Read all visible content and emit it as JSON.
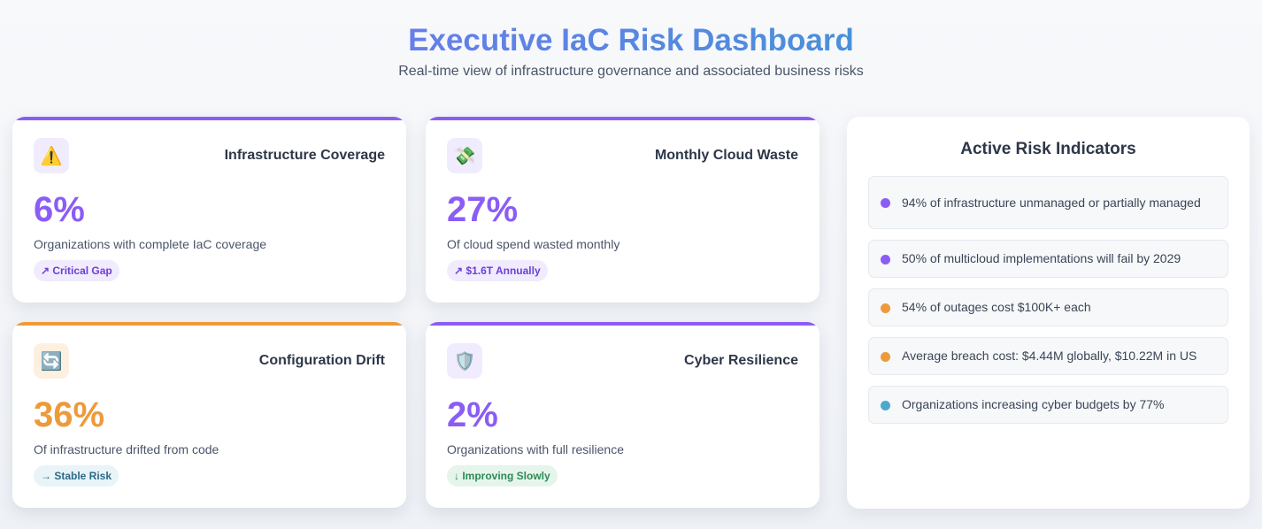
{
  "header": {
    "title": "Executive IaC Risk Dashboard",
    "subtitle": "Real-time view of infrastructure governance and associated business risks"
  },
  "cards": [
    {
      "title": "Infrastructure Coverage",
      "icon": "warning-icon",
      "icon_glyph": "⚠️",
      "value": "6%",
      "description": "Organizations with complete IaC coverage",
      "badge": "↗ Critical Gap",
      "accent": "#8b5cf6",
      "badge_bg": "#f1ebfe",
      "badge_color": "#6d3fd6",
      "icon_bg": "#f1ebfe"
    },
    {
      "title": "Monthly Cloud Waste",
      "icon": "money-icon",
      "icon_glyph": "💸",
      "value": "27%",
      "description": "Of cloud spend wasted monthly",
      "badge": "↗ $1.6T Annually",
      "accent": "#8b5cf6",
      "badge_bg": "#f1ebfe",
      "badge_color": "#6d3fd6",
      "icon_bg": "#f1ebfe"
    },
    {
      "title": "Configuration Drift",
      "icon": "refresh-icon",
      "icon_glyph": "🔄",
      "value": "36%",
      "description": "Of infrastructure drifted from code",
      "badge": "→ Stable Risk",
      "accent": "#ed9a3a",
      "badge_bg": "#e8f4f8",
      "badge_color": "#2c6a85",
      "icon_bg": "#fdf0e1"
    },
    {
      "title": "Cyber Resilience",
      "icon": "shield-icon",
      "icon_glyph": "🛡️",
      "value": "2%",
      "description": "Organizations with full resilience",
      "badge": "↓ Improving Slowly",
      "accent": "#8b5cf6",
      "badge_bg": "#e6f5ec",
      "badge_color": "#2e8a56",
      "icon_bg": "#f1ebfe"
    }
  ],
  "risk_panel": {
    "title": "Active Risk Indicators",
    "items": [
      {
        "text": "94% of infrastructure unmanaged or partially managed",
        "dot_color": "#8b5cf6"
      },
      {
        "text": "50% of multicloud implementations will fail by 2029",
        "dot_color": "#8b5cf6"
      },
      {
        "text": "54% of outages cost $100K+ each",
        "dot_color": "#ed9a3a"
      },
      {
        "text": "Average breach cost: $4.44M globally, $10.22M in US",
        "dot_color": "#ed9a3a"
      },
      {
        "text": "Organizations increasing cyber budgets by 77%",
        "dot_color": "#4ba9cf"
      }
    ]
  }
}
